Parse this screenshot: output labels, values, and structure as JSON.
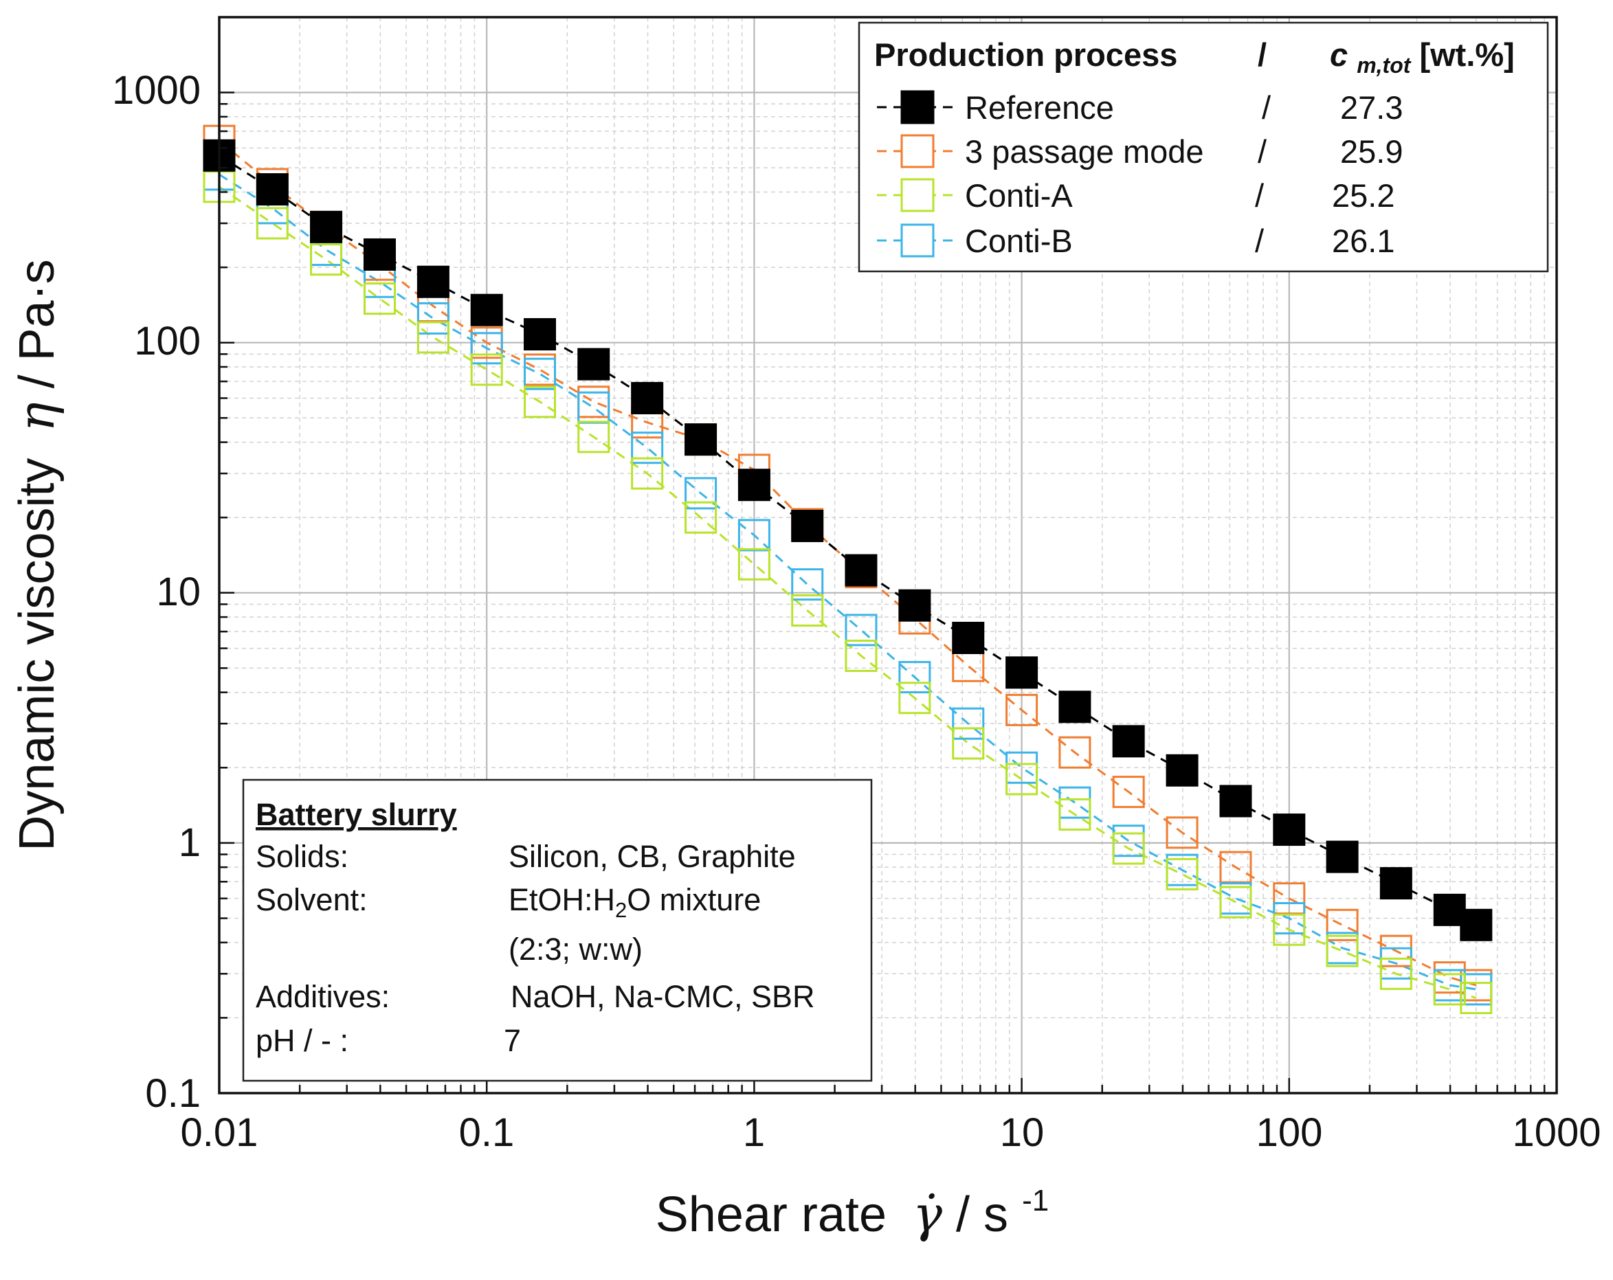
{
  "chart_data": {
    "type": "scatter",
    "xscale": "log",
    "yscale": "log",
    "xlim": [
      0.01,
      1000
    ],
    "ylim": [
      0.1,
      2000
    ],
    "grid": true,
    "xlabel": {
      "text": "Shear rate",
      "symbol": "γ̇",
      "unit": " / s",
      "exp": "-1"
    },
    "ylabel": {
      "text": "Dynamic viscosity",
      "symbol": "η",
      "unit": " / Pa·s"
    },
    "x_ticks": [
      {
        "value": 0.01,
        "label": "0.01"
      },
      {
        "value": 0.1,
        "label": "0.1"
      },
      {
        "value": 1,
        "label": "1"
      },
      {
        "value": 10,
        "label": "10"
      },
      {
        "value": 100,
        "label": "100"
      },
      {
        "value": 1000,
        "label": "1000"
      }
    ],
    "y_ticks": [
      {
        "value": 0.1,
        "label": "0.1"
      },
      {
        "value": 1,
        "label": "1"
      },
      {
        "value": 10,
        "label": "10"
      },
      {
        "value": 100,
        "label": "100"
      },
      {
        "value": 1000,
        "label": "1000"
      }
    ],
    "x": [
      0.01,
      0.0158,
      0.0251,
      0.0398,
      0.0631,
      0.1,
      0.158,
      0.251,
      0.398,
      0.631,
      1,
      1.58,
      2.51,
      3.98,
      6.31,
      10,
      15.8,
      25.1,
      39.8,
      63.1,
      100,
      158,
      251,
      398,
      500
    ],
    "series": [
      {
        "name": "Reference",
        "conc": "27.3",
        "color": "#000000",
        "filled": true,
        "values": [
          560,
          410,
          290,
          225,
          175,
          135,
          108,
          82,
          60,
          41,
          27,
          18.5,
          12.3,
          8.9,
          6.6,
          4.8,
          3.5,
          2.55,
          1.95,
          1.47,
          1.13,
          0.88,
          0.69,
          0.54,
          0.47
        ]
      },
      {
        "name": "3 passage mode",
        "conc": "25.9",
        "color": "#F07D30",
        "filled": false,
        "values": [
          640,
          430,
          290,
          205,
          140,
          100,
          78,
          58,
          48,
          41,
          31,
          18.8,
          12.1,
          7.9,
          5.1,
          3.4,
          2.3,
          1.6,
          1.1,
          0.8,
          0.6,
          0.47,
          0.37,
          0.29,
          0.27
        ]
      },
      {
        "name": "Conti-A",
        "conc": "25.2",
        "color": "#B8E32A",
        "filled": false,
        "values": [
          420,
          300,
          215,
          150,
          105,
          78,
          58,
          42,
          30,
          20,
          13,
          8.5,
          5.6,
          3.8,
          2.5,
          1.8,
          1.3,
          0.95,
          0.75,
          0.58,
          0.45,
          0.37,
          0.3,
          0.26,
          0.24
        ]
      },
      {
        "name": "Conti-B",
        "conc": "26.1",
        "color": "#3CB4E7",
        "filled": false,
        "values": [
          470,
          345,
          235,
          175,
          125,
          95,
          75,
          55,
          38,
          25,
          17,
          10.8,
          7.1,
          4.6,
          3.0,
          2.0,
          1.45,
          1.02,
          0.78,
          0.6,
          0.5,
          0.38,
          0.33,
          0.27,
          0.26
        ]
      }
    ],
    "legend": {
      "position": "top-right",
      "header_process": "Production process",
      "header_sep": "/",
      "header_conc_base": "c",
      "header_conc_sub": "m,tot",
      "header_conc_unit": " [wt.%]",
      "sep": "/"
    },
    "annotation": {
      "position": "bottom-left",
      "title": "Battery slurry",
      "rows": [
        {
          "label": "Solids:",
          "value": "Silicon, CB, Graphite"
        },
        {
          "label": "Solvent:",
          "value_pre": "EtOH:H",
          "value_sub": "2",
          "value_post": "O mixture"
        },
        {
          "label": "",
          "value": "(2:3; w:w)"
        },
        {
          "label": "Additives:",
          "value": "NaOH, Na-CMC, SBR"
        },
        {
          "label": "pH / - :",
          "value": "7"
        }
      ]
    }
  }
}
